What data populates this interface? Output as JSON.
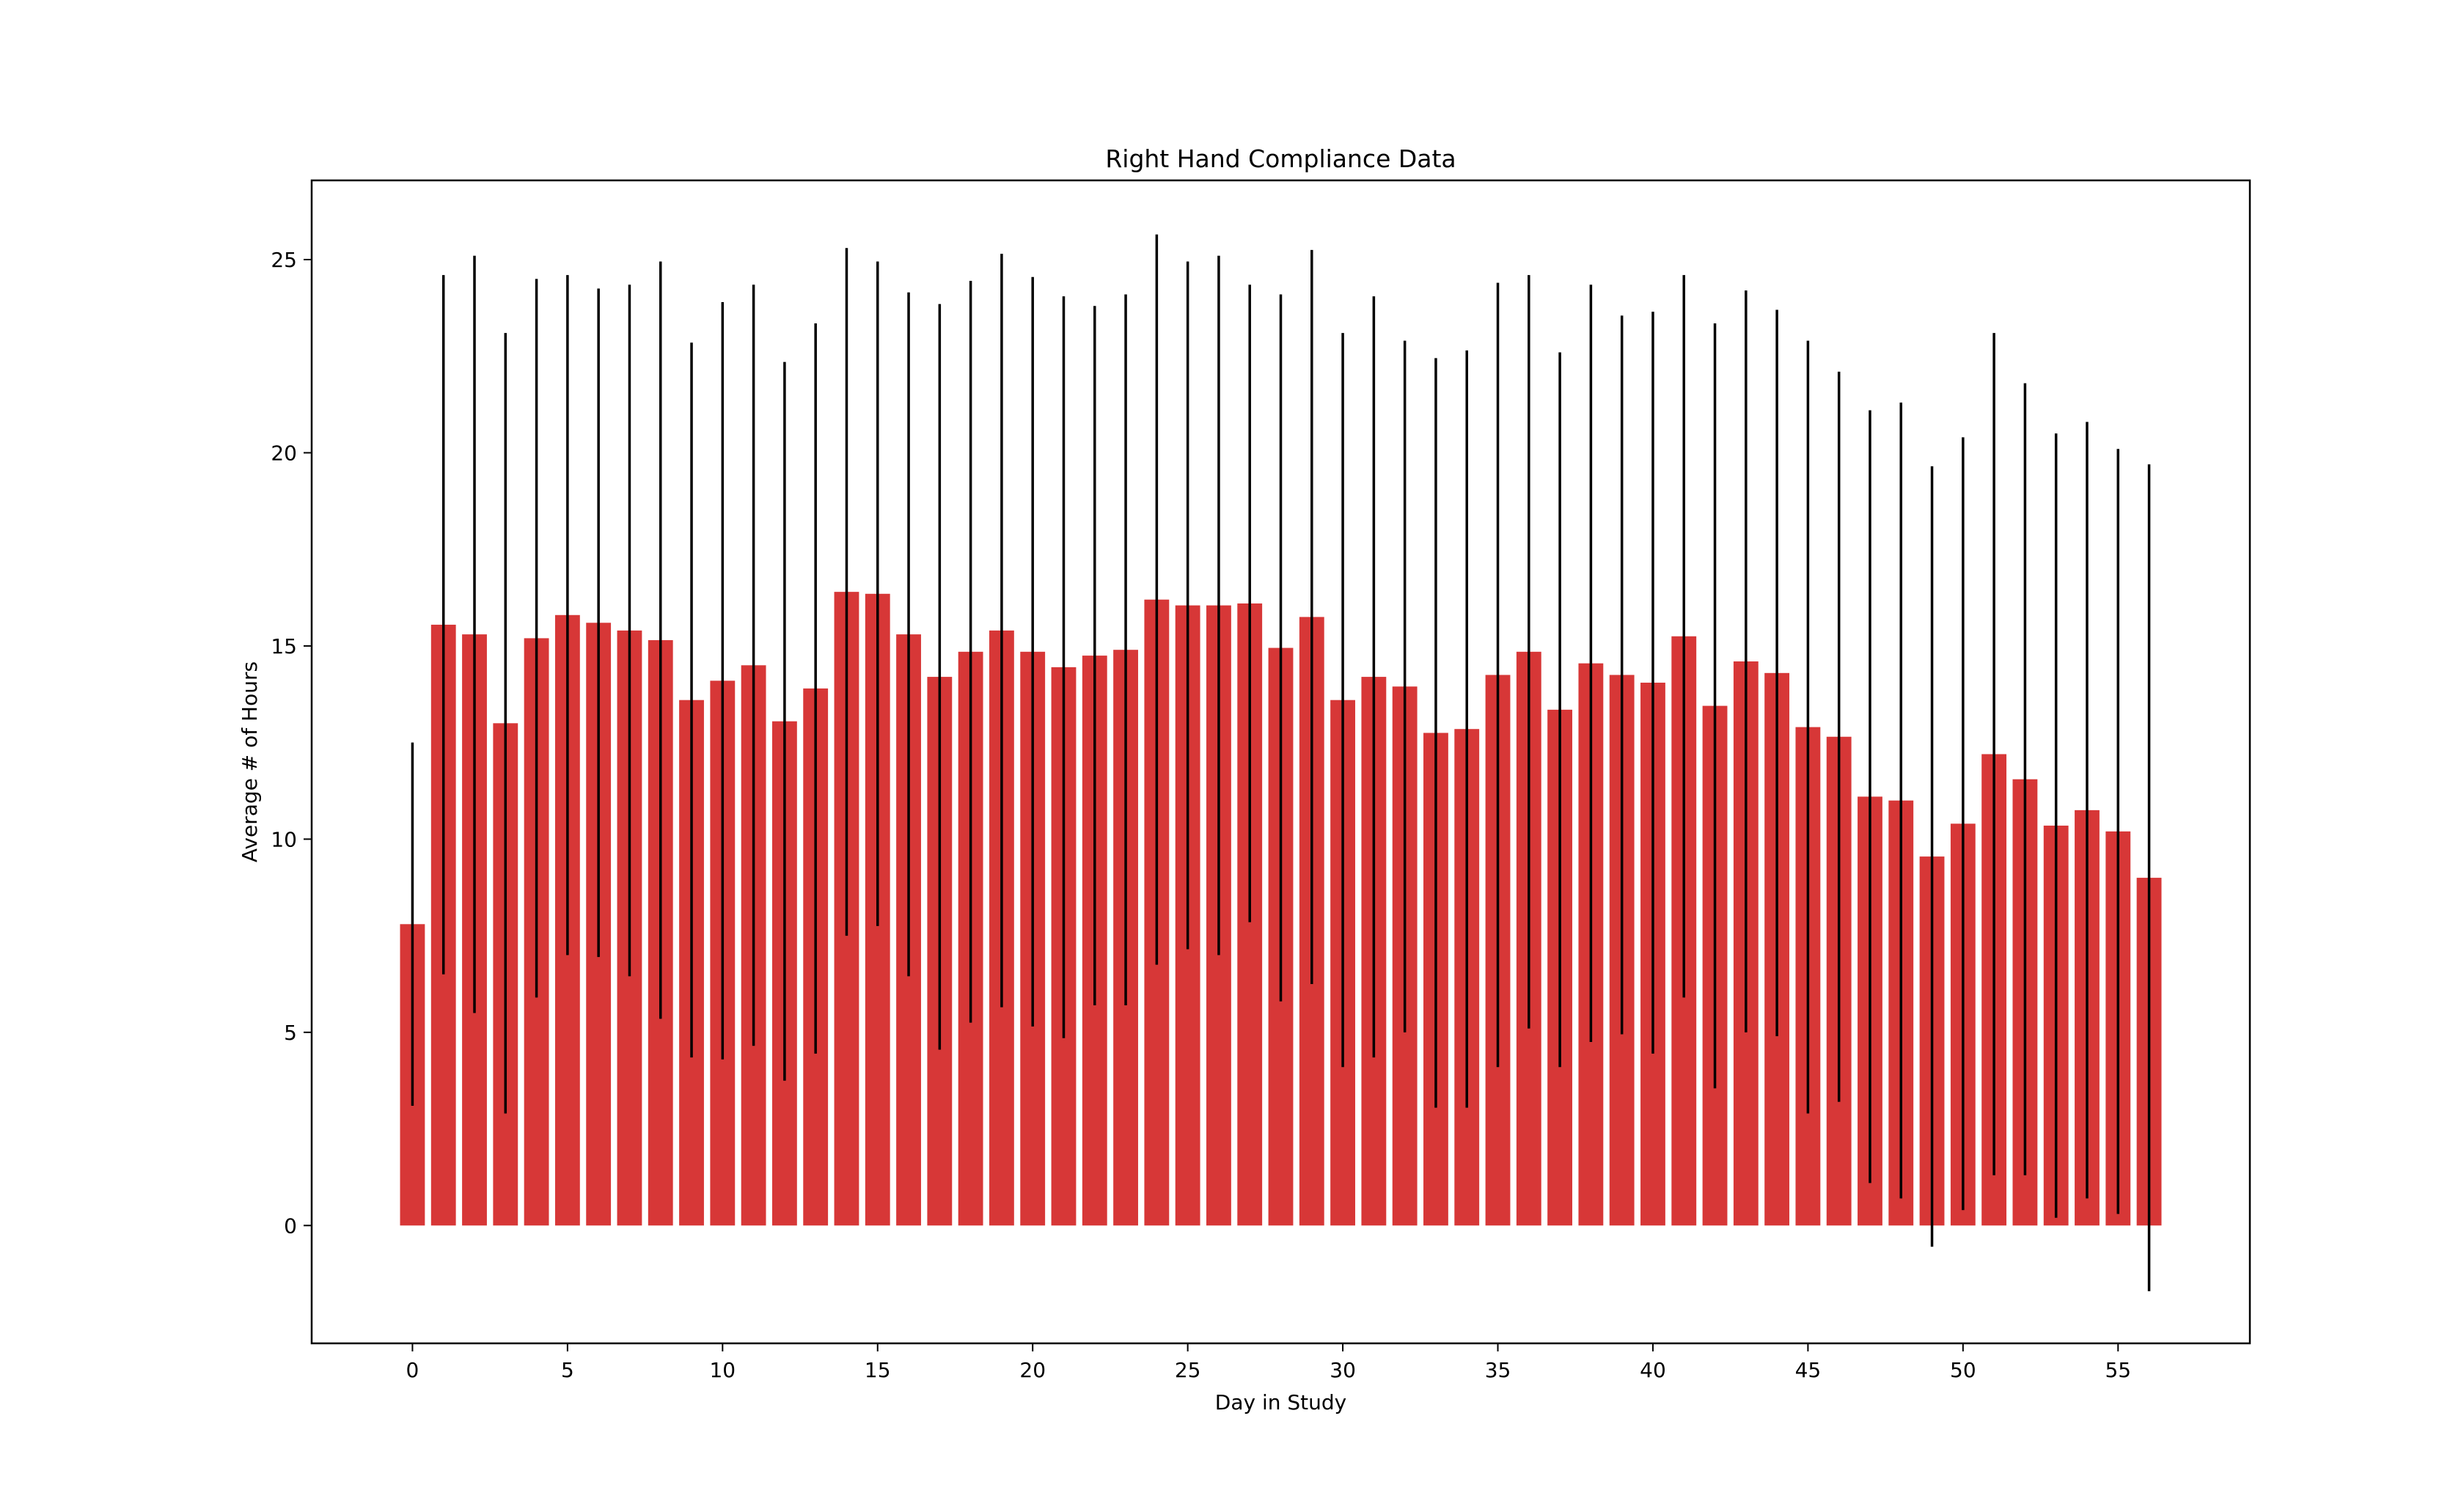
{
  "chart_data": {
    "type": "bar",
    "title": "Right Hand Compliance Data",
    "xlabel": "Day in Study",
    "ylabel": "Average # of Hours",
    "xlim": [
      -3.25,
      59.25
    ],
    "ylim": [
      -3.05,
      27.05
    ],
    "xticks": [
      0,
      5,
      10,
      15,
      20,
      25,
      30,
      35,
      40,
      45,
      50,
      55
    ],
    "yticks": [
      0,
      5,
      10,
      15,
      20,
      25
    ],
    "grid": false,
    "legend": "none",
    "bar_color": "#d73737",
    "error_color": "#000000",
    "x": [
      0,
      1,
      2,
      3,
      4,
      5,
      6,
      7,
      8,
      9,
      10,
      11,
      12,
      13,
      14,
      15,
      16,
      17,
      18,
      19,
      20,
      21,
      22,
      23,
      24,
      25,
      26,
      27,
      28,
      29,
      30,
      31,
      32,
      33,
      34,
      35,
      36,
      37,
      38,
      39,
      40,
      41,
      42,
      43,
      44,
      45,
      46,
      47,
      48,
      49,
      50,
      51,
      52,
      53,
      54,
      55,
      56
    ],
    "values": [
      7.8,
      15.55,
      15.3,
      13.0,
      15.2,
      15.8,
      15.6,
      15.4,
      15.15,
      13.6,
      14.1,
      14.5,
      13.05,
      13.9,
      16.4,
      16.35,
      15.3,
      14.2,
      14.85,
      15.4,
      14.85,
      14.45,
      14.75,
      14.9,
      16.2,
      16.05,
      16.05,
      16.1,
      14.95,
      15.75,
      13.6,
      14.2,
      13.95,
      12.75,
      12.85,
      14.25,
      14.85,
      13.35,
      14.55,
      14.25,
      14.05,
      15.25,
      13.45,
      14.6,
      14.3,
      12.9,
      12.65,
      11.1,
      11.0,
      9.55,
      10.4,
      12.2,
      11.55,
      10.35,
      10.75,
      10.2,
      9.0
    ],
    "errors": [
      4.7,
      9.05,
      9.8,
      10.1,
      9.3,
      8.8,
      8.65,
      8.95,
      9.8,
      9.25,
      9.8,
      9.85,
      9.3,
      9.45,
      8.9,
      8.6,
      8.85,
      9.65,
      9.6,
      9.75,
      9.7,
      9.6,
      9.05,
      9.2,
      9.45,
      8.9,
      9.05,
      8.25,
      9.15,
      9.5,
      9.5,
      9.85,
      8.95,
      9.7,
      9.8,
      10.15,
      9.75,
      9.25,
      9.8,
      9.3,
      9.6,
      9.35,
      9.9,
      9.6,
      9.4,
      10.0,
      9.45,
      10.0,
      10.3,
      10.1,
      10.0,
      10.9,
      10.25,
      10.15,
      10.05,
      9.9,
      10.7
    ]
  }
}
